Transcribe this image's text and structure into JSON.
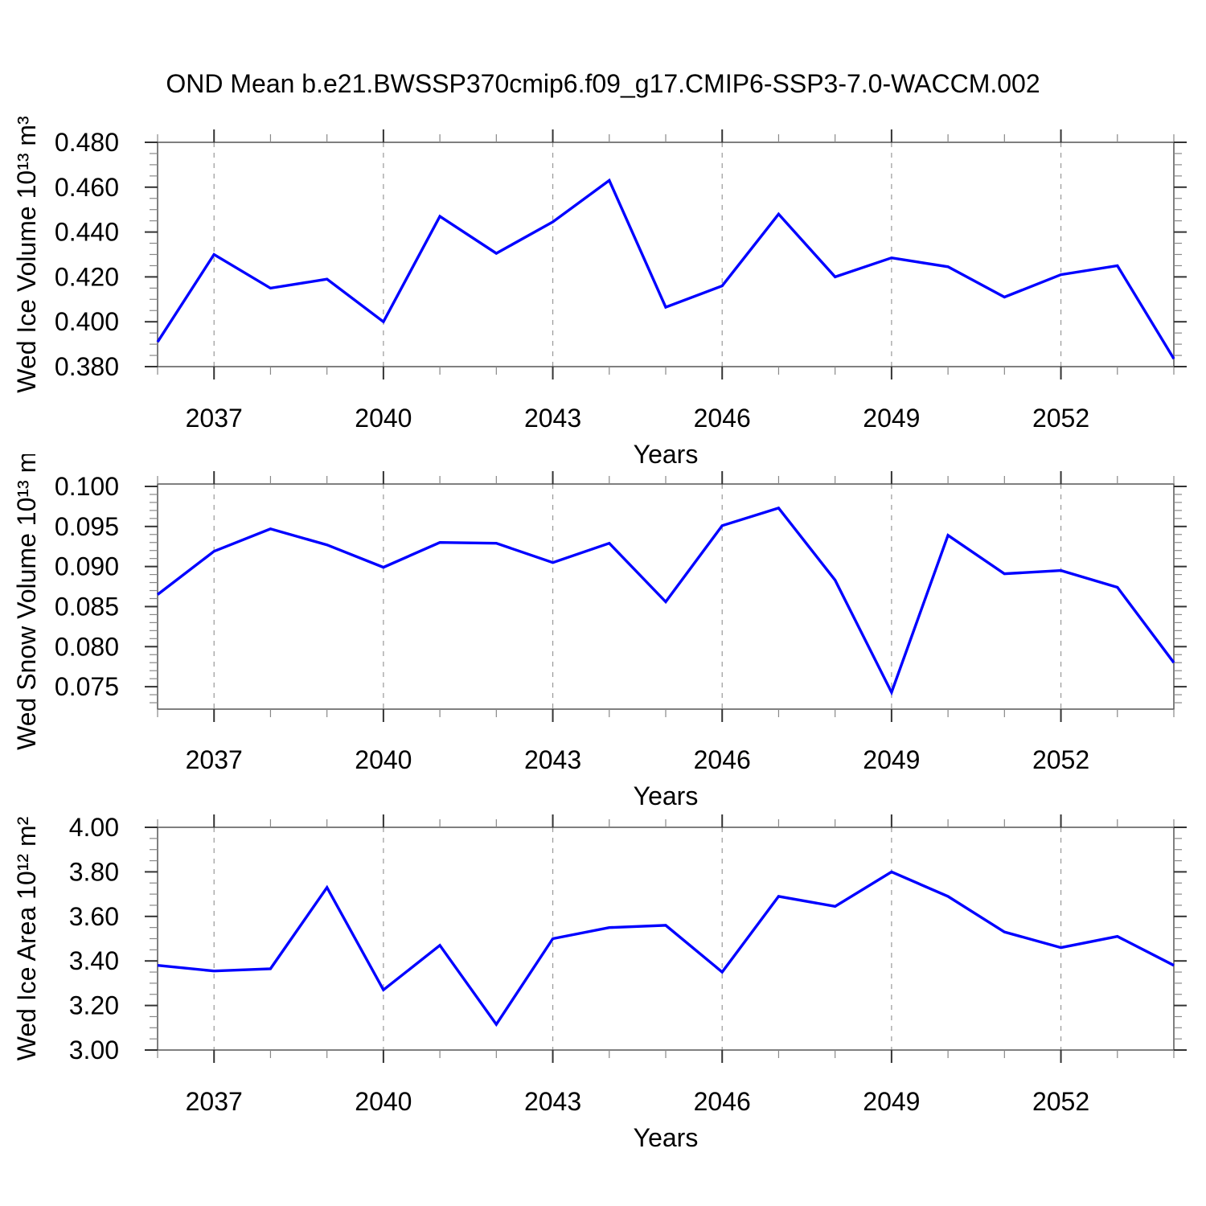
{
  "title": "OND Mean b.e21.BWSSP370cmip6.f09_g17.CMIP6-SSP3-7.0-WACCM.002",
  "xlabel": "Years",
  "line_color": "#0000ff",
  "grid_color": "#999999",
  "axis_color": "#555555",
  "major_tick_color": "#333333",
  "minor_tick_color": "#888888",
  "x_tick_labels": [
    "2037",
    "2040",
    "2043",
    "2046",
    "2049",
    "2052"
  ],
  "x_tick_years": [
    2037,
    2040,
    2043,
    2046,
    2049,
    2052
  ],
  "chart_data": [
    {
      "type": "line",
      "name": "wed-ice-volume",
      "ylabel": "Wed Ice Volume 10¹³ m³",
      "xlabel": "Years",
      "xlim": [
        2036,
        2054
      ],
      "x": [
        2036,
        2037,
        2038,
        2039,
        2040,
        2041,
        2042,
        2043,
        2044,
        2045,
        2046,
        2047,
        2048,
        2049,
        2050,
        2051,
        2052,
        2053,
        2054
      ],
      "values": [
        0.391,
        0.43,
        0.415,
        0.419,
        0.4,
        0.447,
        0.4305,
        0.4445,
        0.463,
        0.4065,
        0.416,
        0.448,
        0.42,
        0.4285,
        0.4245,
        0.411,
        0.421,
        0.425,
        0.3835
      ],
      "ylim": [
        0.38,
        0.48
      ],
      "y_major_tick_values": [
        0.48,
        0.46,
        0.44,
        0.42,
        0.4,
        0.38
      ],
      "y_major_tick_labels": [
        "0.480",
        "0.460",
        "0.440",
        "0.420",
        "0.400",
        "0.380"
      ],
      "y_minor_step": 0.005,
      "grid": "vertical-dashed-at-labeled-years"
    },
    {
      "type": "line",
      "name": "wed-snow-volume",
      "ylabel": "Wed Snow Volume 10¹³ m³",
      "xlabel": "Years",
      "xlim": [
        2036,
        2054
      ],
      "x": [
        2036,
        2037,
        2038,
        2039,
        2040,
        2041,
        2042,
        2043,
        2044,
        2045,
        2046,
        2047,
        2048,
        2049,
        2050,
        2051,
        2052,
        2053,
        2054
      ],
      "values": [
        0.0865,
        0.0919,
        0.0947,
        0.0927,
        0.0899,
        0.093,
        0.0929,
        0.0905,
        0.0929,
        0.0856,
        0.0951,
        0.0973,
        0.0883,
        0.0743,
        0.0939,
        0.0891,
        0.0895,
        0.0874,
        0.078
      ],
      "ylim": [
        0.0722,
        0.1003
      ],
      "y_major_tick_values": [
        0.1,
        0.095,
        0.09,
        0.085,
        0.08,
        0.075
      ],
      "y_major_tick_labels": [
        "0.100",
        "0.095",
        "0.090",
        "0.085",
        "0.080",
        "0.075"
      ],
      "y_minor_step": 0.001,
      "grid": "vertical-dashed-at-labeled-years"
    },
    {
      "type": "line",
      "name": "wed-ice-area",
      "ylabel": "Wed Ice Area 10¹² m²",
      "xlabel": "Years",
      "xlim": [
        2036,
        2054
      ],
      "x": [
        2036,
        2037,
        2038,
        2039,
        2040,
        2041,
        2042,
        2043,
        2044,
        2045,
        2046,
        2047,
        2048,
        2049,
        2050,
        2051,
        2052,
        2053,
        2054
      ],
      "values": [
        3.38,
        3.355,
        3.365,
        3.73,
        3.27,
        3.47,
        3.115,
        3.5,
        3.55,
        3.56,
        3.35,
        3.69,
        3.645,
        3.8,
        3.69,
        3.53,
        3.46,
        3.51,
        3.38
      ],
      "ylim": [
        3.0,
        4.0
      ],
      "y_major_tick_values": [
        4.0,
        3.8,
        3.6,
        3.4,
        3.2,
        3.0
      ],
      "y_major_tick_labels": [
        "4.00",
        "3.80",
        "3.60",
        "3.40",
        "3.20",
        "3.00"
      ],
      "y_minor_step": 0.05,
      "grid": "vertical-dashed-at-labeled-years"
    }
  ]
}
